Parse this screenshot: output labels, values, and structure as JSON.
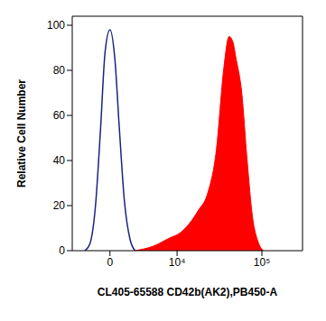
{
  "chart_data": {
    "type": "histogram",
    "x_label": "CL405-65588 CD42b(AK2),PB450-A",
    "y_label": "Relative Cell Number",
    "log": "x",
    "xlim": [
      -3600,
      280000
    ],
    "xticks": [
      0,
      {
        "value": 10000,
        "label": "10⁴"
      },
      {
        "value": 100000,
        "label": "10⁵"
      }
    ],
    "ylim": [
      0,
      104
    ],
    "yticks": [
      0,
      20,
      40,
      60,
      80,
      100
    ],
    "grid": false,
    "series": [
      {
        "type": "line",
        "color": "#1a237e",
        "x": [
          -2000,
          -1500,
          -1000,
          -600,
          -300,
          0,
          300,
          600,
          1000,
          1500,
          2000
        ],
        "values": [
          0,
          3,
          20,
          55,
          88,
          98,
          85,
          55,
          22,
          5,
          0
        ]
      },
      {
        "type": "area",
        "color": "#ff0000",
        "x": [
          2000,
          4500,
          8400,
          10000,
          14400,
          18700,
          23900,
          30600,
          37000,
          42800,
          46900,
          51500,
          59600,
          68500,
          78600,
          90600,
          104000
        ],
        "values": [
          0,
          2,
          6,
          7,
          12,
          18,
          25,
          45,
          80,
          95,
          93,
          85,
          70,
          40,
          15,
          4,
          0
        ]
      }
    ]
  }
}
